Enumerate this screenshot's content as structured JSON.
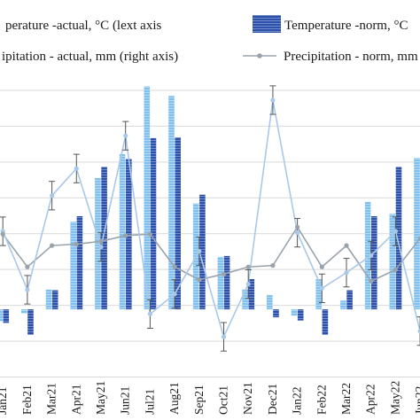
{
  "chart_data": {
    "type": "bar",
    "categories": [
      "Jan21",
      "Feb21",
      "Mar21",
      "Apr21",
      "May21",
      "Jun21",
      "Jul21",
      "Aug21",
      "Sep21",
      "Oct21",
      "Nov21",
      "Dec21",
      "Jan22",
      "Feb22",
      "Mar22",
      "Apr22",
      "May22",
      "Jun22"
    ],
    "x_tick_labels": [
      "Jan21",
      "Feb21",
      "Mar21",
      "Apr21",
      "May21",
      "Jun21",
      "Jul21",
      "Aug21",
      "Sep21",
      "Oct21",
      "Nov21",
      "Dec21",
      "Jan22",
      "Feb22",
      "Mar22",
      "Apr22",
      "May22",
      "Jun22"
    ],
    "legend": [
      {
        "label": "perature -actual, °C (lext axis",
        "marker": "bar-light"
      },
      {
        "label": "Temperature -norm, °C",
        "marker": "bar-dark"
      },
      {
        "label": "ipitation - actual, mm (right axis)",
        "marker": "line-light"
      },
      {
        "label": "Precipitation - norm, mm",
        "marker": "line-grey"
      }
    ],
    "series": [
      {
        "name": "Temperature -actual, °C (lext axis)",
        "kind": "bar",
        "axis": "left",
        "values": [
          -1.5,
          -0.5,
          2.5,
          11,
          16.5,
          19.5,
          28,
          26.8,
          13.3,
          6.6,
          2.5,
          1.8,
          -0.8,
          3.8,
          1.1,
          13.5,
          12,
          19
        ]
      },
      {
        "name": "Temperature -norm, °C",
        "kind": "bar",
        "axis": "left",
        "values": [
          -1.7,
          -3.2,
          2.4,
          11.7,
          17.9,
          18.9,
          21.5,
          21.6,
          14.4,
          6.7,
          3.8,
          -1,
          -1.4,
          -3.2,
          2.4,
          11.7,
          17.9,
          18.9
        ]
      },
      {
        "name": "Precipitation - actual, mm (right axis)",
        "kind": "line",
        "axis": "right",
        "values": [
          60,
          19,
          85,
          104,
          49,
          127,
          2,
          16,
          46,
          -14,
          23,
          152,
          59,
          20,
          31,
          43,
          60,
          -10
        ]
      },
      {
        "name": "Precipitation - norm, mm",
        "kind": "line",
        "axis": "right",
        "values": [
          58,
          35,
          50,
          51,
          53,
          57,
          58,
          35,
          26,
          30,
          35,
          36,
          63,
          35,
          50,
          25,
          33,
          55
        ]
      }
    ],
    "error_bars": {
      "series": "Precipitation - actual, mm (right axis)",
      "delta": 10
    },
    "left_axis": {
      "ylim": [
        -9,
        29.5
      ]
    },
    "right_axis": {
      "ylim": [
        -45,
        170
      ]
    },
    "grid": "horizontal",
    "legend_position": "top"
  }
}
